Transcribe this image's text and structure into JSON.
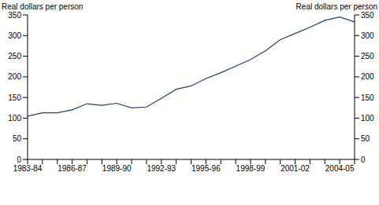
{
  "chart_data": {
    "type": "line",
    "y_label": "Real dollars per person",
    "y2_label": "Real dollars per person",
    "categories": [
      "1983-84",
      null,
      null,
      "1986-87",
      null,
      null,
      "1989-90",
      null,
      null,
      "1992-93",
      null,
      null,
      "1995-96",
      null,
      null,
      "1998-99",
      null,
      null,
      "2001-02",
      null,
      null,
      "2004-05",
      null
    ],
    "values": [
      105,
      113,
      113,
      120,
      135,
      131,
      136,
      125,
      127,
      148,
      170,
      178,
      196,
      210,
      226,
      242,
      263,
      290,
      305,
      320,
      337,
      345,
      333
    ],
    "color": "#1f3f7a",
    "ylim": [
      0,
      350
    ],
    "yticks": [
      0,
      50,
      100,
      150,
      200,
      250,
      300,
      350
    ],
    "y2lim": [
      0,
      350
    ],
    "y2ticks": [
      0,
      50,
      100,
      150,
      200,
      250,
      300,
      350
    ],
    "grid": false
  }
}
